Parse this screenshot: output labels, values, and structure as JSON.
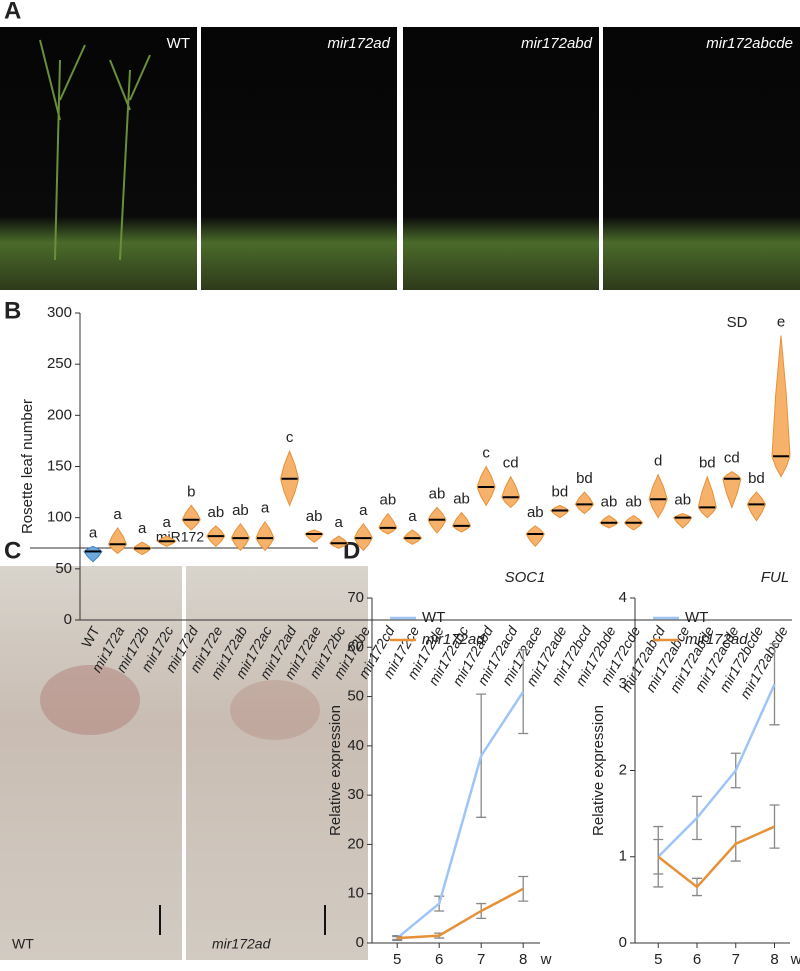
{
  "panel_labels": [
    "A",
    "B",
    "C",
    "D"
  ],
  "photos": {
    "labels": [
      "WT",
      "mir172ad",
      "mir172abd",
      "mir172abcde"
    ]
  },
  "in_situ": {
    "probe": "miR172",
    "labels": [
      "WT",
      "mir172ad"
    ]
  },
  "chart_data": [
    {
      "type": "violin",
      "y_label": "Rosette leaf number",
      "annotation": "SD",
      "categories": [
        "WT",
        "mir172a",
        "mir172b",
        "mir172c",
        "mir172d",
        "mir172e",
        "mir172ab",
        "mir172ac",
        "mir172ad",
        "mir172ae",
        "mir172bc",
        "mir172be",
        "mir172cd",
        "mir172ce",
        "mir172de",
        "mir172abc",
        "mir172abd",
        "mir172acd",
        "mir172ace",
        "mir172ade",
        "mir172bcd",
        "mir172bde",
        "mir172cde",
        "mir172abcd",
        "mir172abce",
        "mir172abde",
        "mir172acde",
        "mir172bcde",
        "mir172abcde"
      ],
      "median": [
        67,
        74,
        70,
        77,
        98,
        82,
        80,
        80,
        138,
        84,
        75,
        80,
        90,
        80,
        98,
        92,
        130,
        120,
        84,
        107,
        113,
        95,
        95,
        118,
        100,
        110,
        138,
        113,
        160
      ],
      "min": [
        57,
        65,
        64,
        72,
        88,
        72,
        68,
        68,
        112,
        76,
        70,
        68,
        84,
        74,
        85,
        86,
        112,
        110,
        72,
        100,
        104,
        90,
        88,
        100,
        90,
        100,
        110,
        97,
        140
      ],
      "max": [
        72,
        90,
        76,
        82,
        112,
        92,
        94,
        96,
        165,
        88,
        82,
        94,
        104,
        88,
        110,
        105,
        150,
        140,
        92,
        112,
        125,
        102,
        102,
        142,
        104,
        140,
        145,
        125,
        278
      ],
      "letters": [
        "a",
        "a",
        "a",
        "a",
        "b",
        "ab",
        "ab",
        "a",
        "c",
        "ab",
        "a",
        "a",
        "ab",
        "a",
        "ab",
        "ab",
        "c",
        "cd",
        "ab",
        "bd",
        "bd",
        "ab",
        "ab",
        "d",
        "ab",
        "bd",
        "cd",
        "bd",
        "e"
      ],
      "colors": {
        "WT": "#6fa8dc",
        "mutant": "#f6b26b"
      },
      "ylim": [
        0,
        300
      ],
      "yticks": [
        0,
        50,
        100,
        150,
        200,
        250,
        300
      ]
    },
    {
      "type": "line",
      "title": "SOC1",
      "y_label": "Relative expression",
      "x_unit": "w",
      "x": [
        5,
        6,
        7,
        8
      ],
      "xlim": [
        4.4,
        8.4
      ],
      "xticks": [
        5,
        6,
        7,
        8
      ],
      "ylim": [
        0,
        70
      ],
      "yticks": [
        0,
        10,
        20,
        30,
        40,
        50,
        60,
        70
      ],
      "legend": "upper left",
      "series": [
        {
          "name": "WT",
          "color": "#9fc5f8",
          "values": [
            1,
            8,
            38,
            51
          ],
          "errors": [
            0.5,
            1.5,
            12.5,
            8.5
          ]
        },
        {
          "name": "mir172ad",
          "color": "#e69138",
          "values": [
            1,
            1.5,
            6.5,
            11
          ],
          "errors": [
            0.3,
            0.5,
            1.5,
            2.5
          ]
        }
      ]
    },
    {
      "type": "line",
      "title": "FUL",
      "y_label": "Relative expression",
      "x_unit": "w",
      "x": [
        5,
        6,
        7,
        8
      ],
      "xlim": [
        4.4,
        8.4
      ],
      "xticks": [
        5,
        6,
        7,
        8
      ],
      "ylim": [
        0,
        4
      ],
      "yticks": [
        0,
        1,
        2,
        3,
        4
      ],
      "legend": "upper left",
      "series": [
        {
          "name": "WT",
          "color": "#9fc5f8",
          "values": [
            1,
            1.45,
            2.0,
            3.0
          ],
          "errors": [
            0.35,
            0.25,
            0.2,
            0.47
          ]
        },
        {
          "name": "mir172ad",
          "color": "#e69138",
          "values": [
            1,
            0.65,
            1.15,
            1.35
          ],
          "errors": [
            0.2,
            0.1,
            0.2,
            0.25
          ]
        }
      ]
    }
  ]
}
